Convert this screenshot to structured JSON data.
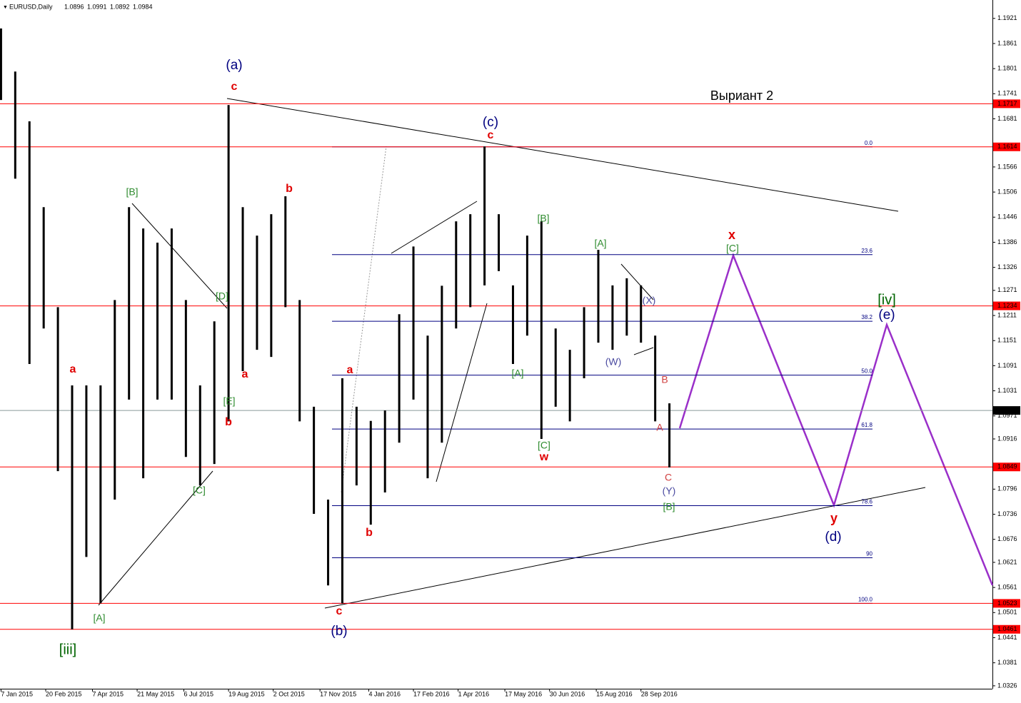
{
  "chart_data": {
    "type": "ohlc",
    "title": "EURUSD,Daily",
    "last": {
      "open": 1.0896,
      "high": 1.0991,
      "low": 1.0892,
      "close": 1.0984
    },
    "color": "#000000",
    "x": [
      "2015-01-07",
      "2015-01-21",
      "2015-02-04",
      "2015-02-18",
      "2015-03-04",
      "2015-03-18",
      "2015-04-01",
      "2015-04-15",
      "2015-04-29",
      "2015-05-13",
      "2015-05-27",
      "2015-06-10",
      "2015-06-24",
      "2015-07-08",
      "2015-07-22",
      "2015-08-05",
      "2015-08-19",
      "2015-09-02",
      "2015-09-16",
      "2015-09-30",
      "2015-10-14",
      "2015-10-28",
      "2015-11-11",
      "2015-11-25",
      "2015-12-09",
      "2015-12-23",
      "2016-01-06",
      "2016-01-20",
      "2016-02-03",
      "2016-02-17",
      "2016-03-02",
      "2016-03-16",
      "2016-03-30",
      "2016-04-13",
      "2016-04-27",
      "2016-05-11",
      "2016-05-25",
      "2016-06-08",
      "2016-06-22",
      "2016-07-06",
      "2016-07-20",
      "2016-08-03",
      "2016-08-17",
      "2016-08-31",
      "2016-09-14",
      "2016-09-28",
      "2016-10-12",
      "2016-10-26"
    ],
    "high": [
      1.1897,
      1.1794,
      1.1675,
      1.147,
      1.1231,
      1.1044,
      1.1044,
      1.1044,
      1.1248,
      1.147,
      1.1419,
      1.1385,
      1.1419,
      1.1248,
      1.1044,
      1.1197,
      1.1714,
      1.147,
      1.1402,
      1.1453,
      1.1496,
      1.1248,
      1.0993,
      1.0771,
      1.1061,
      1.0993,
      1.0959,
      1.0984,
      1.1214,
      1.1376,
      1.1163,
      1.1282,
      1.1436,
      1.1453,
      1.1615,
      1.1453,
      1.1283,
      1.1402,
      1.1436,
      1.118,
      1.1129,
      1.1231,
      1.1368,
      1.1283,
      1.13,
      1.1283,
      1.1163,
      1.1001
    ],
    "low": [
      1.1726,
      1.1538,
      1.1095,
      1.118,
      1.0839,
      1.0461,
      1.0634,
      1.0523,
      1.0771,
      1.101,
      1.0822,
      1.101,
      1.101,
      1.0873,
      1.0805,
      1.0856,
      1.0958,
      1.1078,
      1.1129,
      1.1112,
      1.1231,
      1.0958,
      1.0737,
      1.0566,
      1.0523,
      1.0805,
      1.0711,
      1.0788,
      1.0907,
      1.101,
      1.0822,
      1.0907,
      1.118,
      1.1231,
      1.1283,
      1.1317,
      1.1095,
      1.1163,
      1.0916,
      1.0993,
      1.0958,
      1.1061,
      1.1146,
      1.1129,
      1.1163,
      1.1146,
      1.0958,
      1.0848
    ],
    "xlim": [
      "2015-01-06",
      "2017-09-09"
    ],
    "ylim": [
      1.0319,
      1.1965
    ],
    "xticks": [
      {
        "value": "2015-01-07",
        "label": "7 Jan 2015"
      },
      {
        "value": "2015-02-20",
        "label": "20 Feb 2015"
      },
      {
        "value": "2015-04-07",
        "label": "7 Apr 2015"
      },
      {
        "value": "2015-05-21",
        "label": "21 May 2015"
      },
      {
        "value": "2015-07-06",
        "label": "6 Jul 2015"
      },
      {
        "value": "2015-08-19",
        "label": "19 Aug 2015"
      },
      {
        "value": "2015-10-02",
        "label": "2 Oct 2015"
      },
      {
        "value": "2015-11-17",
        "label": "17 Nov 2015"
      },
      {
        "value": "2016-01-04",
        "label": "4 Jan 2016"
      },
      {
        "value": "2016-02-17",
        "label": "17 Feb 2016"
      },
      {
        "value": "2016-04-01",
        "label": "1 Apr 2016"
      },
      {
        "value": "2016-05-17",
        "label": "17 May 2016"
      },
      {
        "value": "2016-06-30",
        "label": "30 Jun 2016"
      },
      {
        "value": "2016-08-15",
        "label": "15 Aug 2016"
      },
      {
        "value": "2016-09-28",
        "label": "28 Sep 2016"
      }
    ],
    "yticks": [
      1.1921,
      1.1861,
      1.1801,
      1.1741,
      1.1681,
      1.1566,
      1.1506,
      1.1446,
      1.1386,
      1.1326,
      1.1271,
      1.1211,
      1.1151,
      1.1091,
      1.1031,
      1.0971,
      1.0916,
      1.0796,
      1.0736,
      1.0676,
      1.0621,
      1.0561,
      1.0501,
      1.0441,
      1.0381,
      1.0326
    ],
    "levels": {
      "color": "#ff0000",
      "values": [
        1.1717,
        1.1614,
        1.1234,
        1.0849,
        1.0523,
        1.0461
      ]
    },
    "fib": {
      "color": "#000080",
      "from": 1.1614,
      "to": 1.0523,
      "levels": [
        {
          "value": 0,
          "label": "0.0"
        },
        23.6,
        38.2,
        {
          "value": 50,
          "label": "50.0"
        },
        61.8,
        78.6,
        90,
        {
          "value": 100,
          "label": "100.0"
        }
      ]
    },
    "annotations": [
      {
        "text": "(a)",
        "color": "#000080"
      },
      {
        "text": "c",
        "color": "#e00000"
      },
      {
        "text": "[B]",
        "color": "#2e8b2e"
      },
      {
        "text": "b",
        "color": "#e00000"
      },
      {
        "text": "[D]",
        "color": "#2e8b2e"
      },
      {
        "text": "a",
        "color": "#e00000"
      },
      {
        "text": "a",
        "color": "#e00000"
      },
      {
        "text": "[E]",
        "color": "#2e8b2e"
      },
      {
        "text": "b",
        "color": "#e00000"
      },
      {
        "text": "[C]",
        "color": "#2e8b2e"
      },
      {
        "text": "[A]",
        "color": "#2e8b2e"
      },
      {
        "text": "[iii]",
        "color": "#006400"
      },
      {
        "text": "c",
        "color": "#e00000"
      },
      {
        "text": "(b)",
        "color": "#000080"
      },
      {
        "text": "a",
        "color": "#e00000"
      },
      {
        "text": "b",
        "color": "#e00000"
      },
      {
        "text": "(c)",
        "color": "#000080"
      },
      {
        "text": "c",
        "color": "#e00000"
      },
      {
        "text": "[B]",
        "color": "#2e8b2e"
      },
      {
        "text": "[A]",
        "color": "#2e8b2e"
      },
      {
        "text": "[A]",
        "color": "#2e8b2e"
      },
      {
        "text": "[C]",
        "color": "#2e8b2e"
      },
      {
        "text": "w",
        "color": "#e00000"
      },
      {
        "text": "(W)",
        "color": "#4a4aa0"
      },
      {
        "text": "(X)",
        "color": "#4a4aa0"
      },
      {
        "text": "B",
        "color": "#d04040"
      },
      {
        "text": "A",
        "color": "#d04040"
      },
      {
        "text": "C",
        "color": "#d04040"
      },
      {
        "text": "(Y)",
        "color": "#4a4aa0"
      },
      {
        "text": "[B]",
        "color": "#2e8b2e"
      },
      {
        "text": "x",
        "color": "#e00000"
      },
      {
        "text": "[C]",
        "color": "#2e8b2e"
      },
      {
        "text": "[iv]",
        "color": "#006400"
      },
      {
        "text": "(e)",
        "color": "#000080"
      },
      {
        "text": "y",
        "color": "#e00000"
      },
      {
        "text": "(d)",
        "color": "#000080"
      },
      {
        "text": "Выриант 2",
        "color": "#000000"
      }
    ]
  }
}
